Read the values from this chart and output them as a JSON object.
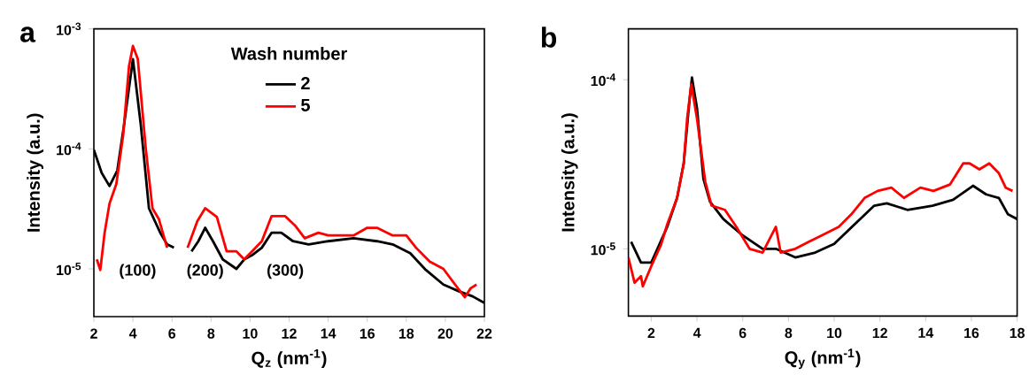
{
  "chart_data": [
    {
      "type": "line",
      "title": "a",
      "xlabel": "Q$_{z}$ (nm$^{-1}$)",
      "ylabel": "Intensity (a.u.)",
      "log": "y",
      "legend": "top",
      "legend_title": "Wash number",
      "xlim": [
        2,
        22
      ],
      "xticks": [
        2,
        4,
        6,
        8,
        10,
        12,
        14,
        16,
        18,
        20,
        22
      ],
      "ylim": [
        4e-06,
        0.001
      ],
      "yticks": [
        {
          "value": 0.001,
          "label": "10$^{-3}$"
        },
        {
          "value": 0.0001,
          "label": "10$^{-4}$"
        },
        {
          "value": 1e-05,
          "label": "10$^{-5}$"
        }
      ],
      "annotations": [
        "(100)",
        "(200)",
        "(300)"
      ],
      "series": [
        {
          "name": "2",
          "color": "#000000",
          "x": [
            2,
            2.4,
            2.8,
            3.2,
            3.55,
            4.0,
            4.4,
            4.82,
            5.4,
            5.75,
            6.1,
            6.4,
            7.0,
            7.35,
            7.7,
            8.1,
            8.6,
            9.3,
            9.7,
            10.1,
            10.6,
            11.1,
            11.6,
            12.2,
            13.0,
            14.0,
            15.3,
            16.5,
            17.3,
            18.2,
            19.0,
            19.9,
            20.7,
            21.4,
            22.0
          ],
          "values": [
            9.8e-05,
            6.3e-05,
            4.9e-05,
            6.6e-05,
            0.00016,
            0.00056,
            0.00016,
            3.2e-05,
            2e-05,
            1.6e-05,
            1.5e-05,
            null,
            1.4e-05,
            1.7e-05,
            2.2e-05,
            1.7e-05,
            1.2e-05,
            1e-05,
            1.2e-05,
            1.3e-05,
            1.5e-05,
            2e-05,
            2e-05,
            1.7e-05,
            1.6e-05,
            1.7e-05,
            1.8e-05,
            1.7e-05,
            1.6e-05,
            1.35e-05,
            9.8e-06,
            7.4e-06,
            6.5e-06,
            5.9e-06,
            5.2e-06
          ]
        },
        {
          "name": "5",
          "color": "#ff0000",
          "x": [
            2.15,
            2.33,
            2.55,
            2.8,
            3.15,
            3.5,
            3.8,
            4.0,
            4.25,
            4.66,
            5.0,
            5.33,
            5.75,
            6.4,
            6.8,
            7.3,
            7.7,
            8.3,
            8.8,
            9.3,
            9.7,
            10.1,
            10.6,
            11.1,
            11.8,
            12.3,
            12.8,
            13.5,
            14.0,
            15.3,
            16.0,
            16.5,
            17.3,
            18.0,
            18.5,
            19.2,
            19.9,
            20.5,
            21.0,
            21.3,
            21.6
          ],
          "values": [
            1.2e-05,
            9.8e-06,
            2e-05,
            3.5e-05,
            5.1e-05,
            0.00013,
            0.00049,
            0.00072,
            0.00056,
            0.0001,
            3.2e-05,
            2.6e-05,
            1.5e-05,
            null,
            1.5e-05,
            2.5e-05,
            3.2e-05,
            2.7e-05,
            1.4e-05,
            1.4e-05,
            1.2e-05,
            1.4e-05,
            1.7e-05,
            2.75e-05,
            2.75e-05,
            2.3e-05,
            1.8e-05,
            2e-05,
            1.9e-05,
            1.9e-05,
            2.2e-05,
            2.2e-05,
            1.9e-05,
            1.9e-05,
            1.5e-05,
            1.15e-05,
            1e-05,
            7.4e-06,
            5.8e-06,
            6.9e-06,
            7.4e-06
          ]
        }
      ]
    },
    {
      "type": "line",
      "title": "b",
      "xlabel": "Q$_{y}$ (nm$^{-1}$)",
      "ylabel": "Intensity (a.u.)",
      "log": "y",
      "xlim": [
        1,
        18
      ],
      "xticks": [
        2,
        4,
        6,
        8,
        10,
        12,
        14,
        16,
        18
      ],
      "ylim": [
        4e-06,
        0.0002
      ],
      "yticks": [
        {
          "value": 0.0001,
          "label": "10$^{-4}$"
        },
        {
          "value": 1e-05,
          "label": "10$^{-5}$"
        }
      ],
      "series": [
        {
          "color": "#000000",
          "x": [
            1.12,
            1.55,
            2.0,
            2.27,
            2.7,
            3.13,
            3.42,
            3.64,
            3.78,
            4.0,
            4.28,
            4.57,
            5.15,
            6.0,
            6.87,
            7.45,
            8.3,
            9.17,
            10.0,
            10.9,
            11.75,
            12.3,
            13.2,
            14.3,
            15.2,
            16.07,
            16.64,
            17.2,
            17.6,
            18.0
          ],
          "values": [
            1.1e-05,
            8.3e-06,
            8.3e-06,
            1e-05,
            1.35e-05,
            2e-05,
            3.2e-05,
            6.8e-05,
            0.000103,
            6.8e-05,
            2.6e-05,
            1.9e-05,
            1.5e-05,
            1.2e-05,
            1e-05,
            1e-05,
            8.9e-06,
            9.5e-06,
            1.07e-05,
            1.4e-05,
            1.8e-05,
            1.86e-05,
            1.7e-05,
            1.8e-05,
            1.95e-05,
            2.36e-05,
            2.1e-05,
            2e-05,
            1.6e-05,
            1.5e-05
          ]
        },
        {
          "color": "#ff0000",
          "x": [
            1.0,
            1.27,
            1.55,
            1.63,
            2.0,
            2.42,
            2.7,
            3.13,
            3.42,
            3.57,
            3.75,
            4.0,
            4.36,
            4.64,
            5.22,
            5.72,
            6.3,
            6.87,
            7.45,
            7.66,
            8.3,
            8.88,
            9.45,
            10.2,
            10.75,
            11.33,
            11.9,
            12.5,
            13.05,
            13.77,
            14.34,
            15.06,
            15.64,
            15.92,
            16.35,
            16.78,
            17.2,
            17.5,
            17.8
          ],
          "values": [
            8.9e-06,
            6.3e-06,
            6.9e-06,
            6e-06,
            7.9e-06,
            1.05e-05,
            1.4e-05,
            2e-05,
            3.2e-05,
            5.9e-05,
            9.4e-05,
            5.9e-05,
            2.5e-05,
            1.8e-05,
            1.7e-05,
            1.35e-05,
            1e-05,
            9.5e-06,
            1.35e-05,
            9.5e-06,
            1e-05,
            1.1e-05,
            1.2e-05,
            1.35e-05,
            1.6e-05,
            2e-05,
            2.2e-05,
            2.3e-05,
            2e-05,
            2.3e-05,
            2.2e-05,
            2.4e-05,
            3.2e-05,
            3.2e-05,
            2.95e-05,
            3.2e-05,
            2.8e-05,
            2.3e-05,
            2.2e-05
          ]
        }
      ]
    }
  ]
}
